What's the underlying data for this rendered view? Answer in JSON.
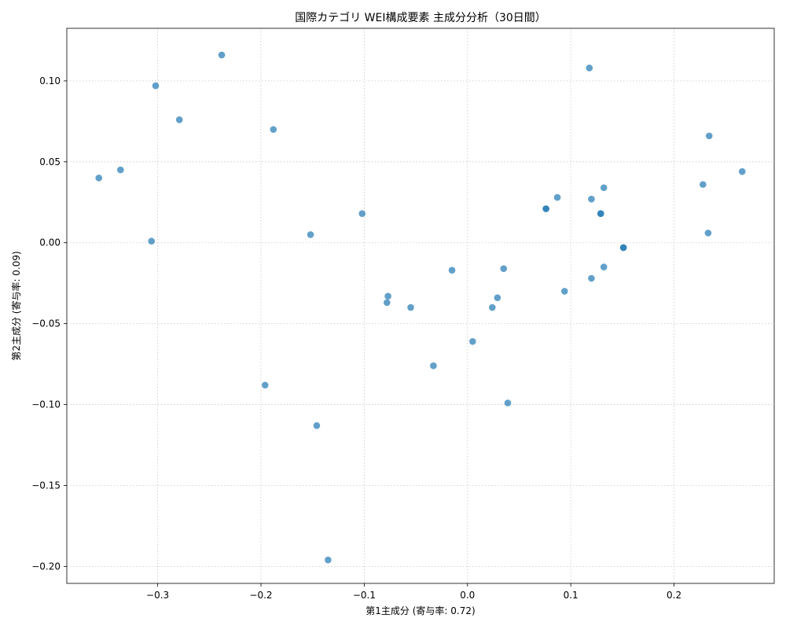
{
  "chart_data": {
    "type": "scatter",
    "title": "国際カテゴリ WEI構成要素 主成分分析（30日間）",
    "xlabel": "第1主成分 (寄与率: 0.72)",
    "ylabel": "第2主成分 (寄与率: 0.09)",
    "xlim": [
      -0.388,
      0.297
    ],
    "ylim": [
      -0.2105,
      0.1325
    ],
    "x_ticks": [
      -0.3,
      -0.2,
      -0.1,
      0.0,
      0.1,
      0.2
    ],
    "x_tick_labels": [
      "−0.3",
      "−0.2",
      "−0.1",
      "0.0",
      "0.1",
      "0.2"
    ],
    "y_ticks": [
      -0.2,
      -0.15,
      -0.1,
      -0.05,
      0.0,
      0.05,
      0.1
    ],
    "y_tick_labels": [
      "−0.20",
      "−0.15",
      "−0.10",
      "−0.05",
      "0.00",
      "0.05",
      "0.10"
    ],
    "grid": true,
    "point_color": "#1f77b4",
    "point_opacity": 0.7,
    "points": [
      {
        "x": -0.238,
        "y": 0.116
      },
      {
        "x": -0.302,
        "y": 0.097
      },
      {
        "x": -0.279,
        "y": 0.076
      },
      {
        "x": -0.188,
        "y": 0.07
      },
      {
        "x": -0.357,
        "y": 0.04
      },
      {
        "x": -0.336,
        "y": 0.045
      },
      {
        "x": -0.306,
        "y": 0.001
      },
      {
        "x": -0.102,
        "y": 0.018
      },
      {
        "x": -0.152,
        "y": 0.005
      },
      {
        "x": -0.015,
        "y": -0.017
      },
      {
        "x": -0.077,
        "y": -0.033
      },
      {
        "x": -0.078,
        "y": -0.037
      },
      {
        "x": -0.055,
        "y": -0.04
      },
      {
        "x": 0.035,
        "y": -0.016
      },
      {
        "x": 0.029,
        "y": -0.034
      },
      {
        "x": 0.024,
        "y": -0.04
      },
      {
        "x": 0.005,
        "y": -0.061
      },
      {
        "x": -0.033,
        "y": -0.076
      },
      {
        "x": 0.039,
        "y": -0.099
      },
      {
        "x": -0.196,
        "y": -0.088
      },
      {
        "x": -0.146,
        "y": -0.113
      },
      {
        "x": -0.135,
        "y": -0.196
      },
      {
        "x": 0.118,
        "y": 0.108
      },
      {
        "x": 0.087,
        "y": 0.028
      },
      {
        "x": 0.076,
        "y": 0.021
      },
      {
        "x": 0.076,
        "y": 0.021
      },
      {
        "x": 0.12,
        "y": 0.027
      },
      {
        "x": 0.132,
        "y": 0.034
      },
      {
        "x": 0.129,
        "y": 0.018
      },
      {
        "x": 0.129,
        "y": 0.018
      },
      {
        "x": 0.151,
        "y": -0.003
      },
      {
        "x": 0.151,
        "y": -0.003
      },
      {
        "x": 0.132,
        "y": -0.015
      },
      {
        "x": 0.12,
        "y": -0.022
      },
      {
        "x": 0.094,
        "y": -0.03
      },
      {
        "x": 0.234,
        "y": 0.066
      },
      {
        "x": 0.266,
        "y": 0.044
      },
      {
        "x": 0.228,
        "y": 0.036
      },
      {
        "x": 0.233,
        "y": 0.006
      }
    ]
  }
}
